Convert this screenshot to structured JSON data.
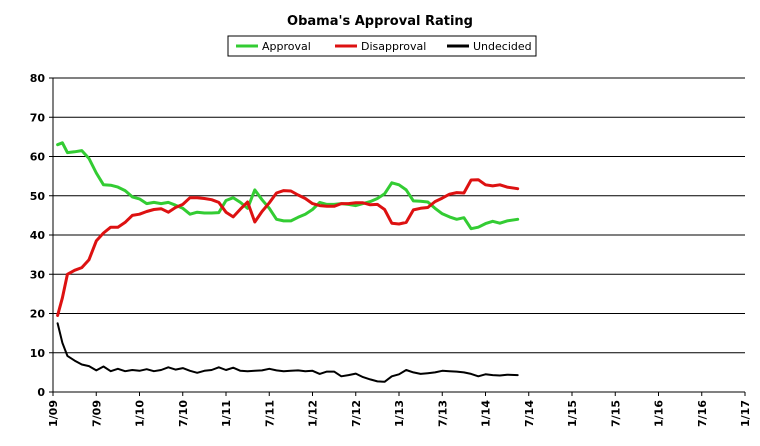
{
  "chart_data": {
    "type": "line",
    "title": "Obama's Approval Rating",
    "xlabel": "",
    "ylabel": "",
    "ylim": [
      0,
      80
    ],
    "yticks": [
      0,
      10,
      20,
      30,
      40,
      50,
      60,
      70,
      80
    ],
    "xticks": [
      "1/09",
      "7/09",
      "1/10",
      "7/10",
      "1/11",
      "7/11",
      "1/12",
      "7/12",
      "1/13",
      "7/13",
      "1/14",
      "7/14",
      "1/15",
      "7/15",
      "1/16",
      "7/16",
      "1/17"
    ],
    "grid": "horizontal",
    "legend_position": "top",
    "series": [
      {
        "name": "Approval",
        "color": "#33cc33",
        "points": [
          [
            "2009-01-20",
            63.0
          ],
          [
            "2009-02-10",
            63.5
          ],
          [
            "2009-03-01",
            61.0
          ],
          [
            "2009-04-01",
            61.2
          ],
          [
            "2009-05-01",
            61.5
          ],
          [
            "2009-06-01",
            59.5
          ],
          [
            "2009-07-01",
            55.8
          ],
          [
            "2009-08-01",
            52.8
          ],
          [
            "2009-09-01",
            52.7
          ],
          [
            "2009-10-01",
            52.2
          ],
          [
            "2009-11-01",
            51.3
          ],
          [
            "2009-12-01",
            49.7
          ],
          [
            "2010-01-01",
            49.2
          ],
          [
            "2010-02-01",
            48.0
          ],
          [
            "2010-03-01",
            48.3
          ],
          [
            "2010-04-01",
            48.0
          ],
          [
            "2010-05-01",
            48.3
          ],
          [
            "2010-06-01",
            47.6
          ],
          [
            "2010-07-01",
            46.8
          ],
          [
            "2010-08-01",
            45.3
          ],
          [
            "2010-09-01",
            45.8
          ],
          [
            "2010-10-01",
            45.6
          ],
          [
            "2010-11-01",
            45.6
          ],
          [
            "2010-12-01",
            45.7
          ],
          [
            "2011-01-01",
            48.8
          ],
          [
            "2011-02-01",
            49.5
          ],
          [
            "2011-03-01",
            48.3
          ],
          [
            "2011-04-01",
            46.8
          ],
          [
            "2011-05-01",
            51.5
          ],
          [
            "2011-06-01",
            49.0
          ],
          [
            "2011-07-01",
            46.8
          ],
          [
            "2011-08-01",
            44.0
          ],
          [
            "2011-09-01",
            43.6
          ],
          [
            "2011-10-01",
            43.6
          ],
          [
            "2011-11-01",
            44.5
          ],
          [
            "2011-12-01",
            45.3
          ],
          [
            "2012-01-01",
            46.5
          ],
          [
            "2012-02-01",
            48.3
          ],
          [
            "2012-03-01",
            47.8
          ],
          [
            "2012-04-01",
            47.8
          ],
          [
            "2012-05-01",
            48.0
          ],
          [
            "2012-06-01",
            47.8
          ],
          [
            "2012-07-01",
            47.5
          ],
          [
            "2012-08-01",
            48.0
          ],
          [
            "2012-09-01",
            48.5
          ],
          [
            "2012-10-01",
            49.3
          ],
          [
            "2012-11-01",
            50.5
          ],
          [
            "2012-12-01",
            53.3
          ],
          [
            "2013-01-01",
            52.8
          ],
          [
            "2013-02-01",
            51.5
          ],
          [
            "2013-03-01",
            48.7
          ],
          [
            "2013-04-01",
            48.6
          ],
          [
            "2013-05-01",
            48.4
          ],
          [
            "2013-06-01",
            46.8
          ],
          [
            "2013-07-01",
            45.4
          ],
          [
            "2013-08-01",
            44.6
          ],
          [
            "2013-09-01",
            44.0
          ],
          [
            "2013-10-01",
            44.4
          ],
          [
            "2013-11-01",
            41.6
          ],
          [
            "2013-12-01",
            42.0
          ],
          [
            "2014-01-01",
            42.9
          ],
          [
            "2014-02-01",
            43.5
          ],
          [
            "2014-03-01",
            43.0
          ],
          [
            "2014-04-01",
            43.6
          ],
          [
            "2014-05-15",
            44.0
          ]
        ]
      },
      {
        "name": "Disapproval",
        "color": "#dd1111",
        "points": [
          [
            "2009-01-20",
            19.5
          ],
          [
            "2009-02-10",
            24.0
          ],
          [
            "2009-03-01",
            30.0
          ],
          [
            "2009-04-01",
            31.0
          ],
          [
            "2009-05-01",
            31.7
          ],
          [
            "2009-06-01",
            33.7
          ],
          [
            "2009-07-01",
            38.5
          ],
          [
            "2009-08-01",
            40.5
          ],
          [
            "2009-09-01",
            42.0
          ],
          [
            "2009-10-01",
            42.0
          ],
          [
            "2009-11-01",
            43.2
          ],
          [
            "2009-12-01",
            45.0
          ],
          [
            "2010-01-01",
            45.3
          ],
          [
            "2010-02-01",
            46.0
          ],
          [
            "2010-03-01",
            46.5
          ],
          [
            "2010-04-01",
            46.7
          ],
          [
            "2010-05-01",
            45.8
          ],
          [
            "2010-06-01",
            47.0
          ],
          [
            "2010-07-01",
            47.8
          ],
          [
            "2010-08-01",
            49.5
          ],
          [
            "2010-09-01",
            49.5
          ],
          [
            "2010-10-01",
            49.3
          ],
          [
            "2010-11-01",
            49.0
          ],
          [
            "2010-12-01",
            48.3
          ],
          [
            "2011-01-01",
            45.8
          ],
          [
            "2011-02-01",
            44.6
          ],
          [
            "2011-03-01",
            46.6
          ],
          [
            "2011-04-01",
            48.4
          ],
          [
            "2011-05-01",
            43.3
          ],
          [
            "2011-06-01",
            46.0
          ],
          [
            "2011-07-01",
            48.2
          ],
          [
            "2011-08-01",
            50.7
          ],
          [
            "2011-09-01",
            51.3
          ],
          [
            "2011-10-01",
            51.2
          ],
          [
            "2011-11-01",
            50.2
          ],
          [
            "2011-12-01",
            49.3
          ],
          [
            "2012-01-01",
            48.0
          ],
          [
            "2012-02-01",
            47.5
          ],
          [
            "2012-03-01",
            47.3
          ],
          [
            "2012-04-01",
            47.3
          ],
          [
            "2012-05-01",
            48.0
          ],
          [
            "2012-06-01",
            48.0
          ],
          [
            "2012-07-01",
            48.2
          ],
          [
            "2012-08-01",
            48.2
          ],
          [
            "2012-09-01",
            47.7
          ],
          [
            "2012-10-01",
            47.8
          ],
          [
            "2012-11-01",
            46.5
          ],
          [
            "2012-12-01",
            43.0
          ],
          [
            "2013-01-01",
            42.8
          ],
          [
            "2013-02-01",
            43.2
          ],
          [
            "2013-03-01",
            46.4
          ],
          [
            "2013-04-01",
            46.8
          ],
          [
            "2013-05-01",
            47.0
          ],
          [
            "2013-06-01",
            48.5
          ],
          [
            "2013-07-01",
            49.4
          ],
          [
            "2013-08-01",
            50.4
          ],
          [
            "2013-09-01",
            50.8
          ],
          [
            "2013-10-01",
            50.7
          ],
          [
            "2013-11-01",
            54.0
          ],
          [
            "2013-12-01",
            54.1
          ],
          [
            "2014-01-01",
            52.8
          ],
          [
            "2014-02-01",
            52.5
          ],
          [
            "2014-03-01",
            52.8
          ],
          [
            "2014-04-01",
            52.2
          ],
          [
            "2014-05-15",
            51.8
          ]
        ]
      },
      {
        "name": "Undecided",
        "color": "#000000",
        "points": [
          [
            "2009-01-20",
            17.5
          ],
          [
            "2009-02-10",
            12.5
          ],
          [
            "2009-03-01",
            9.2
          ],
          [
            "2009-04-01",
            8.0
          ],
          [
            "2009-05-01",
            7.0
          ],
          [
            "2009-06-01",
            6.6
          ],
          [
            "2009-07-01",
            5.5
          ],
          [
            "2009-08-01",
            6.5
          ],
          [
            "2009-09-01",
            5.3
          ],
          [
            "2009-10-01",
            5.9
          ],
          [
            "2009-11-01",
            5.3
          ],
          [
            "2009-12-01",
            5.6
          ],
          [
            "2010-01-01",
            5.4
          ],
          [
            "2010-02-01",
            5.8
          ],
          [
            "2010-03-01",
            5.3
          ],
          [
            "2010-04-01",
            5.6
          ],
          [
            "2010-05-01",
            6.3
          ],
          [
            "2010-06-01",
            5.7
          ],
          [
            "2010-07-01",
            6.1
          ],
          [
            "2010-08-01",
            5.4
          ],
          [
            "2010-09-01",
            4.9
          ],
          [
            "2010-10-01",
            5.4
          ],
          [
            "2010-11-01",
            5.6
          ],
          [
            "2010-12-01",
            6.3
          ],
          [
            "2011-01-01",
            5.6
          ],
          [
            "2011-02-01",
            6.2
          ],
          [
            "2011-03-01",
            5.4
          ],
          [
            "2011-04-01",
            5.3
          ],
          [
            "2011-05-01",
            5.4
          ],
          [
            "2011-06-01",
            5.5
          ],
          [
            "2011-07-01",
            5.9
          ],
          [
            "2011-08-01",
            5.5
          ],
          [
            "2011-09-01",
            5.3
          ],
          [
            "2011-10-01",
            5.4
          ],
          [
            "2011-11-01",
            5.5
          ],
          [
            "2011-12-01",
            5.3
          ],
          [
            "2012-01-01",
            5.4
          ],
          [
            "2012-02-01",
            4.6
          ],
          [
            "2012-03-01",
            5.2
          ],
          [
            "2012-04-01",
            5.2
          ],
          [
            "2012-05-01",
            4.0
          ],
          [
            "2012-06-01",
            4.3
          ],
          [
            "2012-07-01",
            4.7
          ],
          [
            "2012-08-01",
            3.8
          ],
          [
            "2012-09-01",
            3.2
          ],
          [
            "2012-10-01",
            2.7
          ],
          [
            "2012-11-01",
            2.6
          ],
          [
            "2012-12-01",
            4.0
          ],
          [
            "2013-01-01",
            4.5
          ],
          [
            "2013-02-01",
            5.6
          ],
          [
            "2013-03-01",
            5.0
          ],
          [
            "2013-04-01",
            4.6
          ],
          [
            "2013-05-01",
            4.8
          ],
          [
            "2013-06-01",
            5.0
          ],
          [
            "2013-07-01",
            5.4
          ],
          [
            "2013-08-01",
            5.3
          ],
          [
            "2013-09-01",
            5.2
          ],
          [
            "2013-10-01",
            5.0
          ],
          [
            "2013-11-01",
            4.6
          ],
          [
            "2013-12-01",
            4.0
          ],
          [
            "2014-01-01",
            4.5
          ],
          [
            "2014-02-01",
            4.3
          ],
          [
            "2014-03-01",
            4.2
          ],
          [
            "2014-04-01",
            4.4
          ],
          [
            "2014-05-15",
            4.3
          ]
        ]
      }
    ]
  }
}
